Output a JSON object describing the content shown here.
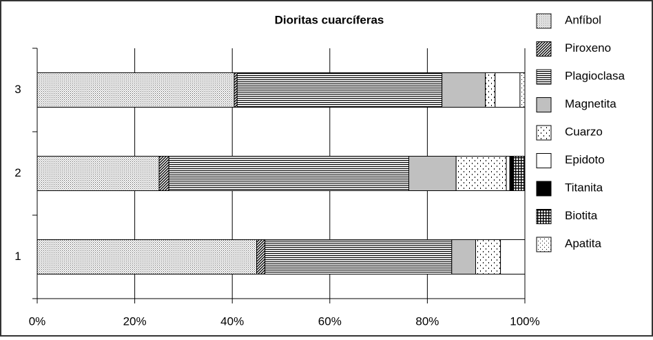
{
  "chart_data": {
    "type": "stacked-bar-horizontal",
    "title": "Dioritas cuarcíferas",
    "categories": [
      "1",
      "2",
      "3"
    ],
    "series": [
      {
        "name": "Anfíbol",
        "color": "#808080",
        "pattern": "dots",
        "values": [
          45,
          25,
          40.4
        ]
      },
      {
        "name": "Piroxeno",
        "color": "#000000",
        "pattern": "diagonal",
        "values": [
          1.7,
          2,
          0.6
        ]
      },
      {
        "name": "Plagioclasa",
        "color": "#000000",
        "pattern": "horizontal",
        "values": [
          38.3,
          49.2,
          42
        ]
      },
      {
        "name": "Magnetita",
        "color": "#c0c0c0",
        "pattern": "solid",
        "values": [
          4.9,
          9.7,
          8.9
        ]
      },
      {
        "name": "Cuarzo",
        "color": "#000000",
        "pattern": "dashes",
        "values": [
          5.1,
          10.3,
          2
        ]
      },
      {
        "name": "Epidoto",
        "color": "#ffffff",
        "pattern": "solid",
        "values": [
          5,
          0.7,
          5.1
        ]
      },
      {
        "name": "Titanita",
        "color": "#000000",
        "pattern": "solid",
        "values": [
          0,
          0.8,
          0
        ]
      },
      {
        "name": "Biotita",
        "color": "#000000",
        "pattern": "grid",
        "values": [
          0,
          2.3,
          0
        ]
      },
      {
        "name": "Apatita",
        "color": "#000000",
        "pattern": "sparse-dots",
        "values": [
          0,
          0,
          1
        ]
      }
    ],
    "xlim": [
      0,
      100
    ],
    "xticks": [
      {
        "value": 0,
        "label": "0%"
      },
      {
        "value": 20,
        "label": "20%"
      },
      {
        "value": 40,
        "label": "40%"
      },
      {
        "value": 60,
        "label": "60%"
      },
      {
        "value": 80,
        "label": "80%"
      },
      {
        "value": 100,
        "label": "100%"
      }
    ],
    "grid": true,
    "legend": "right"
  }
}
